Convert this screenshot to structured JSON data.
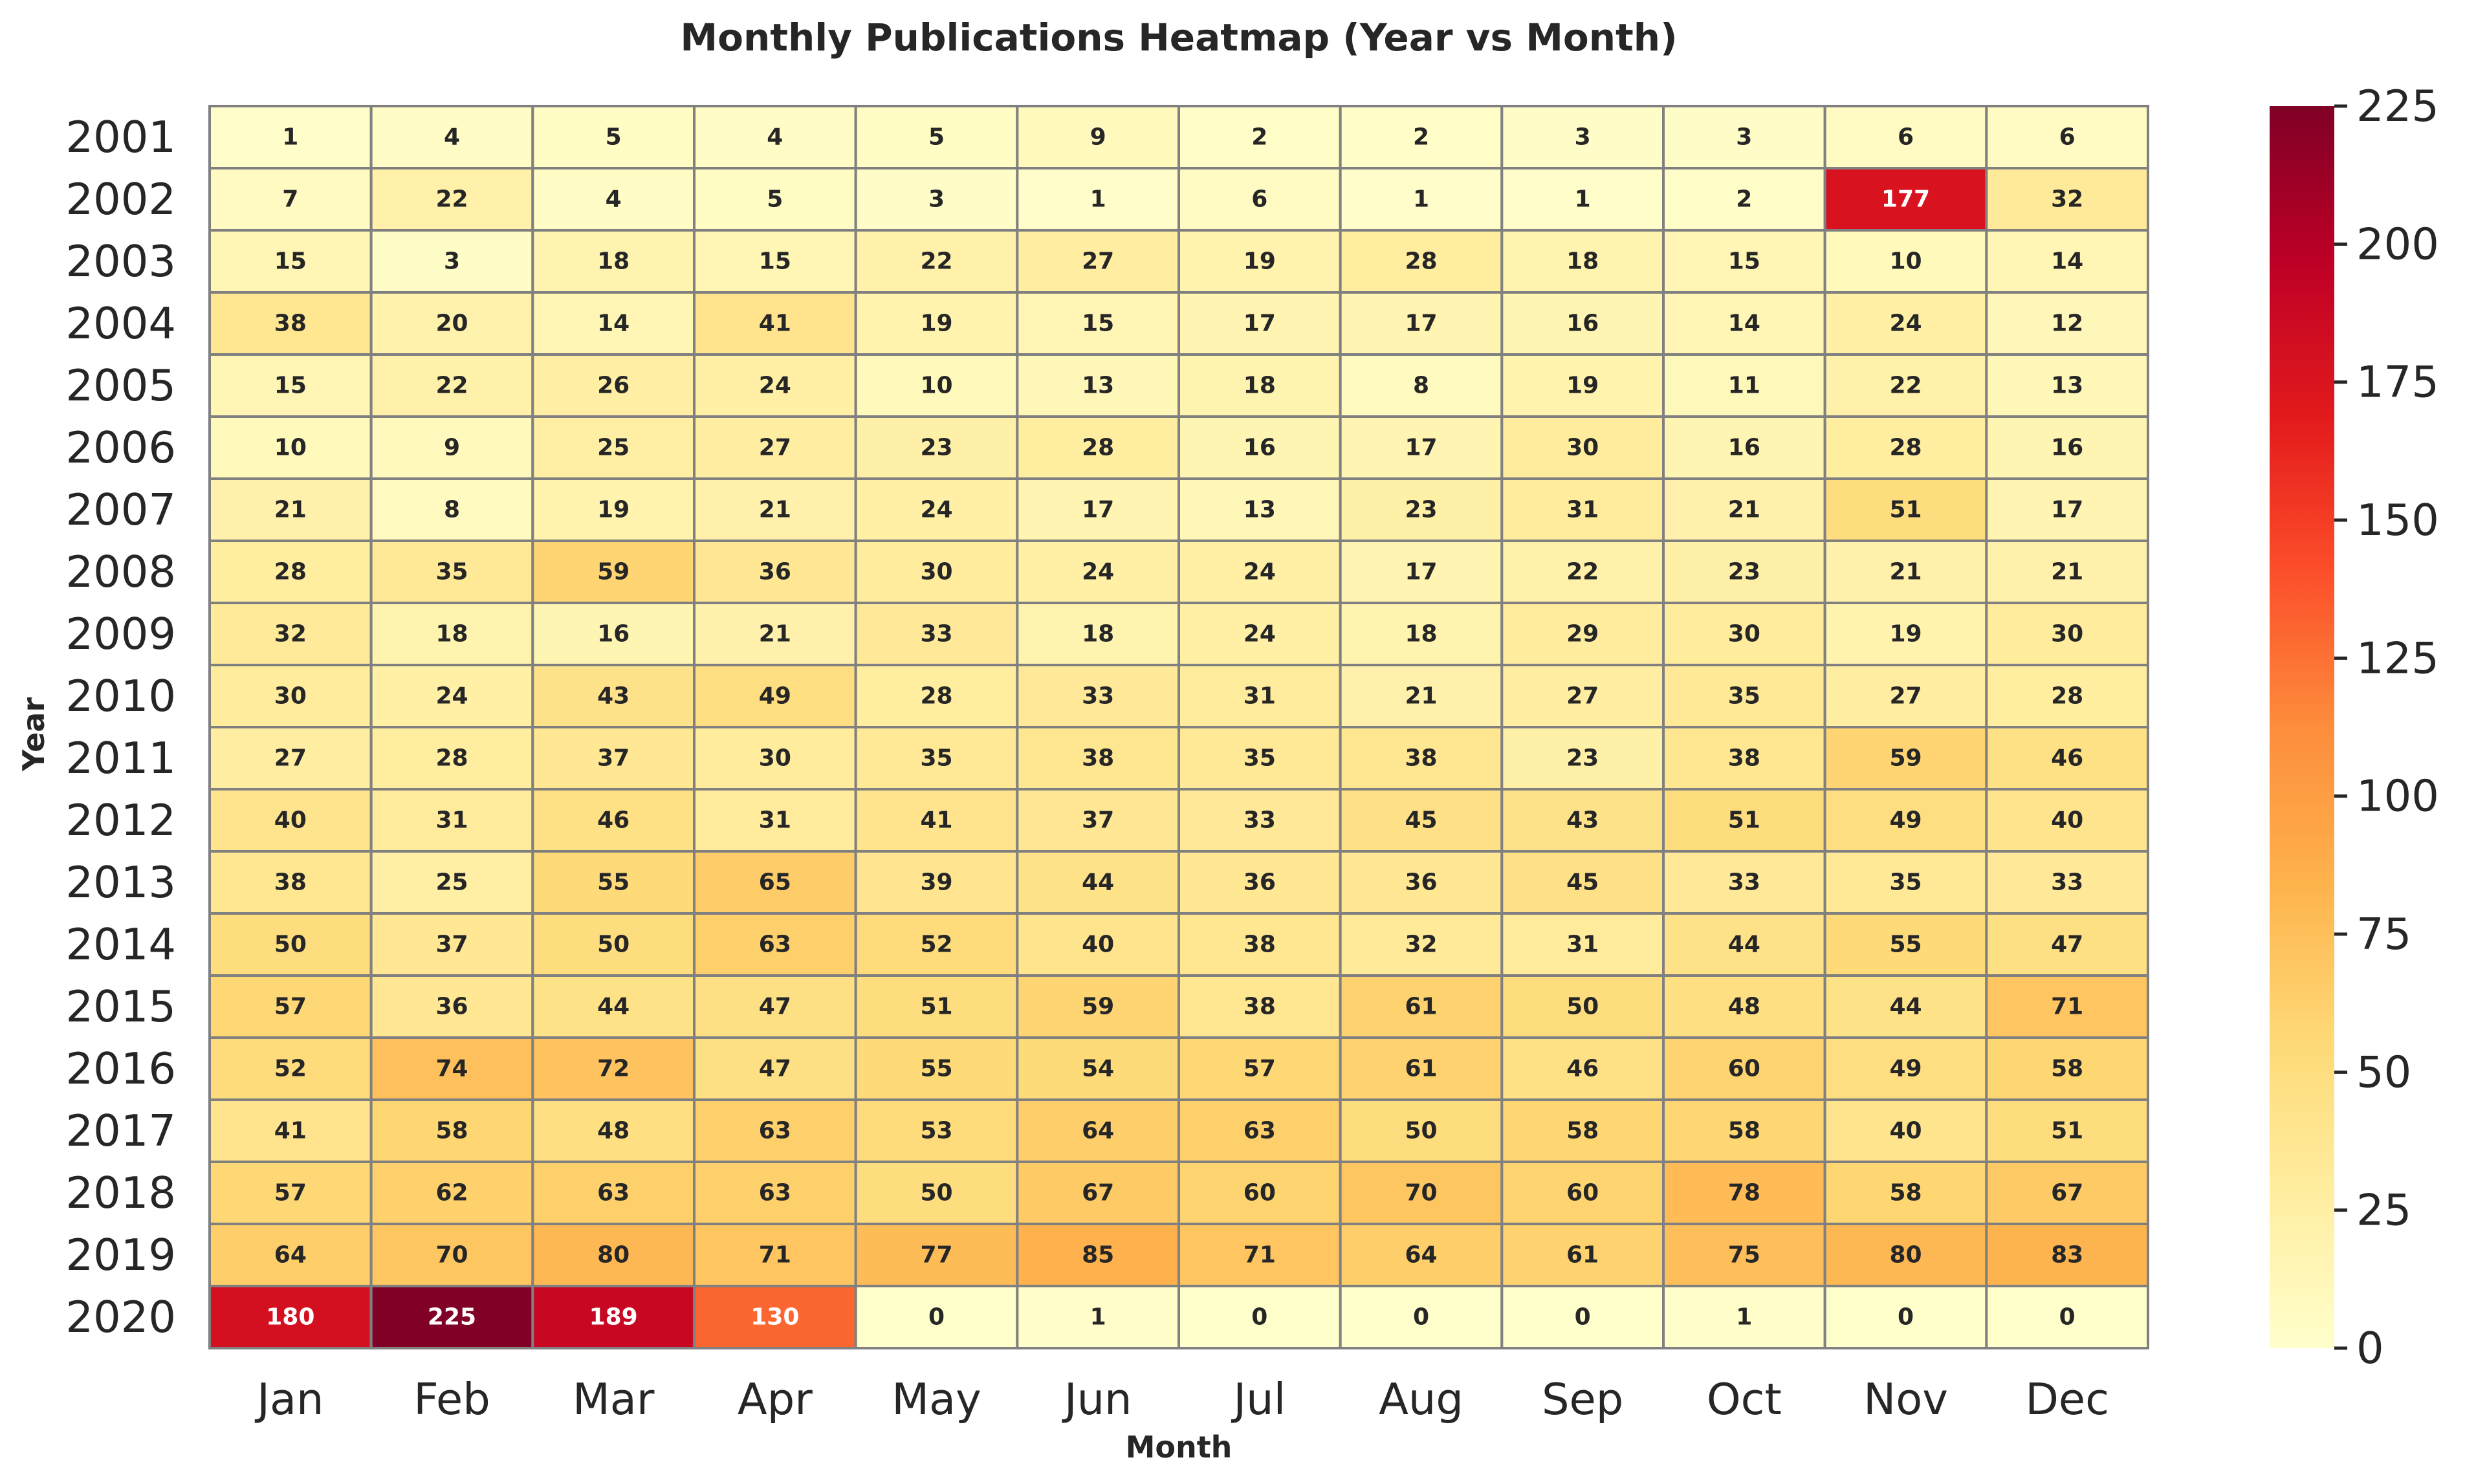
{
  "chart_data": {
    "type": "heatmap",
    "title": "Monthly Publications Heatmap (Year vs Month)",
    "xlabel": "Month",
    "ylabel": "Year",
    "x_categories": [
      "Jan",
      "Feb",
      "Mar",
      "Apr",
      "May",
      "Jun",
      "Jul",
      "Aug",
      "Sep",
      "Oct",
      "Nov",
      "Dec"
    ],
    "y_categories": [
      "2001",
      "2002",
      "2003",
      "2004",
      "2005",
      "2006",
      "2007",
      "2008",
      "2009",
      "2010",
      "2011",
      "2012",
      "2013",
      "2014",
      "2015",
      "2016",
      "2017",
      "2018",
      "2019",
      "2020"
    ],
    "values": [
      [
        1,
        4,
        5,
        4,
        5,
        9,
        2,
        2,
        3,
        3,
        6,
        6
      ],
      [
        7,
        22,
        4,
        5,
        3,
        1,
        6,
        1,
        1,
        2,
        177,
        32
      ],
      [
        15,
        3,
        18,
        15,
        22,
        27,
        19,
        28,
        18,
        15,
        10,
        14
      ],
      [
        38,
        20,
        14,
        41,
        19,
        15,
        17,
        17,
        16,
        14,
        24,
        12
      ],
      [
        15,
        22,
        26,
        24,
        10,
        13,
        18,
        8,
        19,
        11,
        22,
        13
      ],
      [
        10,
        9,
        25,
        27,
        23,
        28,
        16,
        17,
        30,
        16,
        28,
        16
      ],
      [
        21,
        8,
        19,
        21,
        24,
        17,
        13,
        23,
        31,
        21,
        51,
        17
      ],
      [
        28,
        35,
        59,
        36,
        30,
        24,
        24,
        17,
        22,
        23,
        21,
        21
      ],
      [
        32,
        18,
        16,
        21,
        33,
        18,
        24,
        18,
        29,
        30,
        19,
        30
      ],
      [
        30,
        24,
        43,
        49,
        28,
        33,
        31,
        21,
        27,
        35,
        27,
        28
      ],
      [
        27,
        28,
        37,
        30,
        35,
        38,
        35,
        38,
        23,
        38,
        59,
        46
      ],
      [
        40,
        31,
        46,
        31,
        41,
        37,
        33,
        45,
        43,
        51,
        49,
        40
      ],
      [
        38,
        25,
        55,
        65,
        39,
        44,
        36,
        36,
        45,
        33,
        35,
        33
      ],
      [
        50,
        37,
        50,
        63,
        52,
        40,
        38,
        32,
        31,
        44,
        55,
        47
      ],
      [
        57,
        36,
        44,
        47,
        51,
        59,
        38,
        61,
        50,
        48,
        44,
        71
      ],
      [
        52,
        74,
        72,
        47,
        55,
        54,
        57,
        61,
        46,
        60,
        49,
        58
      ],
      [
        41,
        58,
        48,
        63,
        53,
        64,
        63,
        50,
        58,
        58,
        40,
        51
      ],
      [
        57,
        62,
        63,
        63,
        50,
        67,
        60,
        70,
        60,
        78,
        58,
        67
      ],
      [
        64,
        70,
        80,
        71,
        77,
        85,
        71,
        64,
        61,
        75,
        80,
        83
      ],
      [
        180,
        225,
        189,
        130,
        0,
        1,
        0,
        0,
        0,
        1,
        0,
        0
      ]
    ],
    "colormap": "YlOrRd",
    "vmin": 0,
    "vmax": 225,
    "colorbar_ticks": [
      0,
      25,
      50,
      75,
      100,
      125,
      150,
      175,
      200,
      225
    ],
    "grid": false,
    "cell_border_color": "#808080",
    "annotations": true
  }
}
